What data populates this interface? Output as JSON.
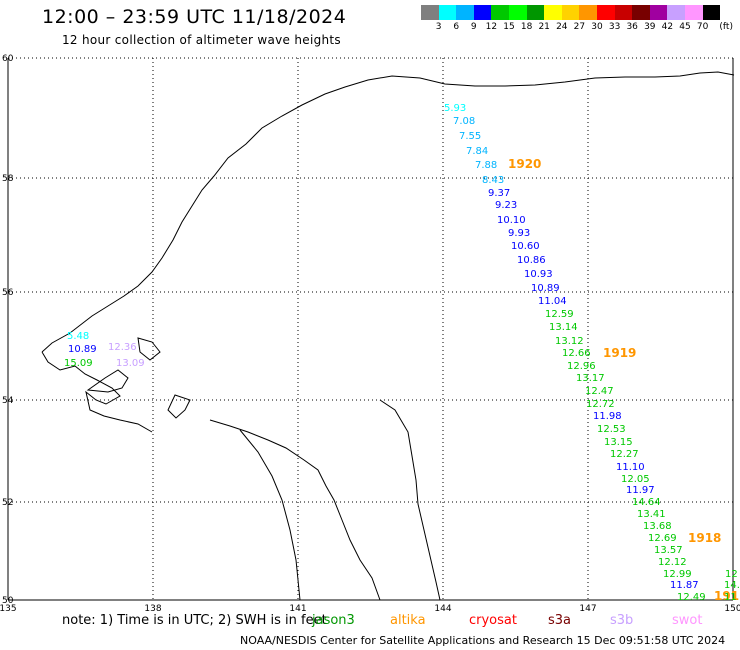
{
  "header": {
    "title": "12:00 – 23:59 UTC 11/18/2024",
    "subtitle": "12 hour collection of altimeter wave heights"
  },
  "colorbar": {
    "colors": [
      "#7f7f7f",
      "#00ffff",
      "#00b4ff",
      "#0000ff",
      "#00c800",
      "#00ff00",
      "#009600",
      "#ffff00",
      "#ffd200",
      "#ff9600",
      "#ff0000",
      "#c80000",
      "#780000",
      "#a000a0",
      "#c8a0ff",
      "#ff96ff",
      "#000000"
    ],
    "labels": [
      "3",
      "6",
      "9",
      "12",
      "15",
      "18",
      "21",
      "24",
      "27",
      "30",
      "33",
      "36",
      "39",
      "42",
      "45",
      "70"
    ],
    "unit": "(ft)"
  },
  "map": {
    "lat_labels": [
      "60",
      "58",
      "56",
      "54",
      "52",
      "50"
    ],
    "lon_labels": [
      "135",
      "138",
      "141",
      "144",
      "147",
      "150"
    ],
    "pass_labels": [
      {
        "text": "1920",
        "color": "#ff9600"
      },
      {
        "text": "1919",
        "color": "#ff9600"
      },
      {
        "text": "1918",
        "color": "#ff9600"
      },
      {
        "text": "191",
        "color": "#ff9600"
      }
    ],
    "sat_swh": [
      {
        "text": "5.93",
        "color": "#00ffff"
      },
      {
        "text": "7.08",
        "color": "#00b4ff"
      },
      {
        "text": "7.55",
        "color": "#00b4ff"
      },
      {
        "text": "7.84",
        "color": "#00b4ff"
      },
      {
        "text": "7.88",
        "color": "#00b4ff"
      },
      {
        "text": "8.43",
        "color": "#00b4ff"
      },
      {
        "text": "9.37",
        "color": "#0000ff"
      },
      {
        "text": "9.23",
        "color": "#0000ff"
      },
      {
        "text": "10.10",
        "color": "#0000ff"
      },
      {
        "text": "9.93",
        "color": "#0000ff"
      },
      {
        "text": "10.60",
        "color": "#0000ff"
      },
      {
        "text": "10.86",
        "color": "#0000ff"
      },
      {
        "text": "10.93",
        "color": "#0000ff"
      },
      {
        "text": "10.89",
        "color": "#0000ff"
      },
      {
        "text": "11.04",
        "color": "#0000ff"
      },
      {
        "text": "12.59",
        "color": "#00c800"
      },
      {
        "text": "13.14",
        "color": "#00c800"
      },
      {
        "text": "13.12",
        "color": "#00c800"
      },
      {
        "text": "12.66",
        "color": "#00c800"
      },
      {
        "text": "12.96",
        "color": "#00c800"
      },
      {
        "text": "13.17",
        "color": "#00c800"
      },
      {
        "text": "12.47",
        "color": "#00c800"
      },
      {
        "text": "12.72",
        "color": "#00c800"
      },
      {
        "text": "11.98",
        "color": "#0000ff"
      },
      {
        "text": "12.53",
        "color": "#00c800"
      },
      {
        "text": "13.15",
        "color": "#00c800"
      },
      {
        "text": "12.27",
        "color": "#00c800"
      },
      {
        "text": "11.10",
        "color": "#0000ff"
      },
      {
        "text": "12.05",
        "color": "#00c800"
      },
      {
        "text": "11.97",
        "color": "#0000ff"
      },
      {
        "text": "14.64",
        "color": "#00c800"
      },
      {
        "text": "13.41",
        "color": "#00c800"
      },
      {
        "text": "13.68",
        "color": "#00c800"
      },
      {
        "text": "12.69",
        "color": "#00c800"
      },
      {
        "text": "13.57",
        "color": "#00c800"
      },
      {
        "text": "12.12",
        "color": "#00c800"
      },
      {
        "text": "12.99",
        "color": "#00c800"
      },
      {
        "text": "11.87",
        "color": "#0000ff"
      },
      {
        "text": "12.49",
        "color": "#00c800"
      },
      {
        "text": "12",
        "color": "#00c800"
      },
      {
        "text": "14.",
        "color": "#00c800"
      },
      {
        "text": "11",
        "color": "#00c800"
      },
      {
        "text": "5.48",
        "color": "#00ffff"
      },
      {
        "text": "10.89",
        "color": "#0000ff"
      },
      {
        "text": "15.09",
        "color": "#00c800"
      },
      {
        "text": "12.36",
        "color": "#c8a0ff"
      },
      {
        "text": "13.09",
        "color": "#c8a0ff"
      }
    ]
  },
  "footer": {
    "note": "note:  1) Time is in UTC;  2) SWH is in feet",
    "legend": [
      {
        "label": "jason3",
        "color": "#009600"
      },
      {
        "label": "altika",
        "color": "#ff9600"
      },
      {
        "label": "cryosat",
        "color": "#ff0000"
      },
      {
        "label": "s3a",
        "color": "#780000"
      },
      {
        "label": "s3b",
        "color": "#c8a0ff"
      },
      {
        "label": "swot",
        "color": "#ff96ff"
      }
    ],
    "credit": "NOAA/NESDIS Center for Satellite Applications and Research    15 Dec 09:51:58 UTC 2024"
  }
}
